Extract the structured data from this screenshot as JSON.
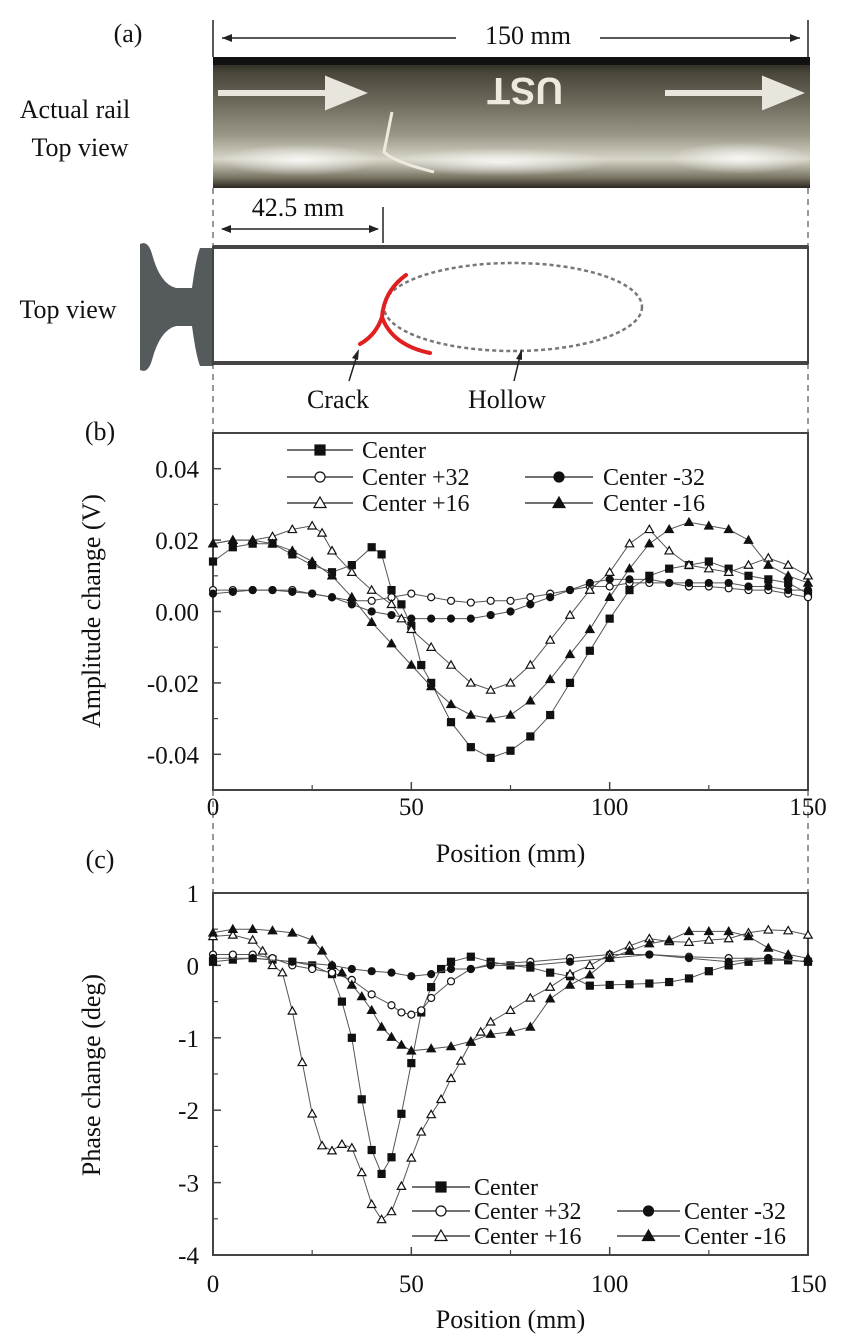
{
  "panel_a": {
    "label": "(a)",
    "photo_label_line1": "Actual rail",
    "photo_label_line2": "Top view",
    "photo_marking": "UST",
    "length_dimension": "150 mm",
    "crack_dimension": "42.5 mm",
    "schematic_label": "Top view",
    "crack_label": "Crack",
    "hollow_label": "Hollow",
    "crack_color": "#e02020"
  },
  "chart_data": [
    {
      "panel_label": "(b)",
      "type": "line",
      "xlabel": "Position (mm)",
      "ylabel": "Amplitude change (V)",
      "xlim": [
        0,
        150
      ],
      "ylim": [
        -0.05,
        0.05
      ],
      "xticks": [
        0,
        50,
        100,
        150
      ],
      "xtick_labels": [
        "0",
        "50",
        "100",
        "150"
      ],
      "yticks": [
        0.04,
        0.02,
        0.0,
        -0.02,
        -0.04
      ],
      "ytick_labels": [
        "0.04",
        "0.02",
        "0.00",
        "-0.02",
        "-0.04"
      ],
      "grid": false,
      "legend_position": "top-left",
      "series": [
        {
          "name": "Center",
          "marker": "filled-square",
          "x": [
            0,
            5,
            10,
            15,
            20,
            25,
            30,
            35,
            40,
            42.5,
            45,
            47.5,
            50,
            52.5,
            55,
            60,
            65,
            70,
            75,
            80,
            85,
            90,
            95,
            100,
            105,
            110,
            115,
            120,
            125,
            130,
            135,
            140,
            145,
            150
          ],
          "y": [
            0.014,
            0.018,
            0.019,
            0.019,
            0.016,
            0.013,
            0.011,
            0.013,
            0.018,
            0.016,
            0.006,
            0.002,
            -0.004,
            -0.015,
            -0.02,
            -0.031,
            -0.038,
            -0.041,
            -0.039,
            -0.035,
            -0.029,
            -0.02,
            -0.011,
            -0.002,
            0.006,
            0.01,
            0.012,
            0.013,
            0.014,
            0.012,
            0.01,
            0.009,
            0.008,
            0.005
          ]
        },
        {
          "name": "Center +32",
          "marker": "open-circle",
          "x": [
            0,
            5,
            10,
            15,
            20,
            25,
            30,
            35,
            40,
            45,
            50,
            55,
            60,
            65,
            70,
            75,
            80,
            85,
            90,
            95,
            100,
            105,
            110,
            115,
            120,
            125,
            130,
            135,
            140,
            145,
            150
          ],
          "y": [
            0.006,
            0.006,
            0.006,
            0.006,
            0.006,
            0.005,
            0.004,
            0.003,
            0.003,
            0.004,
            0.005,
            0.004,
            0.003,
            0.0025,
            0.003,
            0.003,
            0.004,
            0.005,
            0.006,
            0.007,
            0.007,
            0.008,
            0.008,
            0.008,
            0.007,
            0.007,
            0.0065,
            0.006,
            0.006,
            0.005,
            0.004
          ]
        },
        {
          "name": "Center -32",
          "marker": "filled-circle",
          "x": [
            0,
            5,
            10,
            15,
            20,
            25,
            30,
            35,
            40,
            45,
            50,
            55,
            60,
            65,
            70,
            75,
            80,
            85,
            90,
            95,
            100,
            105,
            110,
            115,
            120,
            125,
            130,
            135,
            140,
            145,
            150
          ],
          "y": [
            0.005,
            0.0055,
            0.006,
            0.006,
            0.0055,
            0.005,
            0.004,
            0.002,
            0.0,
            -0.001,
            -0.002,
            -0.002,
            -0.002,
            -0.002,
            -0.001,
            0.0,
            0.002,
            0.004,
            0.006,
            0.008,
            0.009,
            0.009,
            0.009,
            0.008,
            0.008,
            0.008,
            0.008,
            0.007,
            0.007,
            0.006,
            0.006
          ]
        },
        {
          "name": "Center +16",
          "marker": "open-triangle",
          "x": [
            0,
            5,
            10,
            15,
            20,
            25,
            27.5,
            30,
            35,
            40,
            45,
            47.5,
            50,
            55,
            60,
            65,
            70,
            75,
            80,
            85,
            90,
            95,
            100,
            105,
            110,
            115,
            120,
            125,
            130,
            135,
            140,
            145,
            150
          ],
          "y": [
            0.019,
            0.02,
            0.02,
            0.021,
            0.023,
            0.024,
            0.022,
            0.017,
            0.011,
            0.006,
            0.002,
            -0.002,
            -0.005,
            -0.01,
            -0.015,
            -0.02,
            -0.022,
            -0.02,
            -0.015,
            -0.008,
            -0.001,
            0.006,
            0.011,
            0.019,
            0.023,
            0.017,
            0.013,
            0.012,
            0.011,
            0.013,
            0.015,
            0.013,
            0.01
          ]
        },
        {
          "name": "Center -16",
          "marker": "filled-triangle",
          "x": [
            0,
            5,
            10,
            15,
            20,
            25,
            30,
            35,
            40,
            45,
            50,
            55,
            60,
            65,
            70,
            75,
            80,
            85,
            90,
            95,
            100,
            105,
            110,
            115,
            120,
            125,
            130,
            135,
            140,
            145,
            150
          ],
          "y": [
            0.019,
            0.02,
            0.02,
            0.019,
            0.017,
            0.014,
            0.01,
            0.004,
            -0.003,
            -0.009,
            -0.015,
            -0.021,
            -0.026,
            -0.029,
            -0.03,
            -0.029,
            -0.025,
            -0.019,
            -0.012,
            -0.005,
            0.004,
            0.012,
            0.019,
            0.023,
            0.025,
            0.024,
            0.023,
            0.02,
            0.013,
            0.01,
            0.008
          ]
        }
      ]
    },
    {
      "panel_label": "(c)",
      "type": "line",
      "xlabel": "Position (mm)",
      "ylabel": "Phase change (deg)",
      "xlim": [
        0,
        150
      ],
      "ylim": [
        -4,
        1
      ],
      "xticks": [
        0,
        50,
        100,
        150
      ],
      "xtick_labels": [
        "0",
        "50",
        "100",
        "150"
      ],
      "yticks": [
        1,
        0,
        -1,
        -2,
        -3,
        -4
      ],
      "ytick_labels": [
        "1",
        "0",
        "-1",
        "-2",
        "-3",
        "-4"
      ],
      "grid": false,
      "legend_position": "bottom-right",
      "series": [
        {
          "name": "Center",
          "marker": "filled-square",
          "x": [
            0,
            5,
            10,
            15,
            20,
            25,
            30,
            32.5,
            35,
            37.5,
            40,
            42.5,
            45,
            47.5,
            50,
            52.5,
            55,
            57.5,
            60,
            65,
            70,
            75,
            80,
            85,
            90,
            95,
            100,
            105,
            110,
            115,
            120,
            125,
            130,
            135,
            140,
            145,
            150
          ],
          "y": [
            0.05,
            0.08,
            0.1,
            0.08,
            0.05,
            0.0,
            -0.12,
            -0.5,
            -1.0,
            -1.85,
            -2.55,
            -2.88,
            -2.65,
            -2.05,
            -1.35,
            -0.65,
            -0.3,
            -0.05,
            0.05,
            0.12,
            0.05,
            0.0,
            -0.03,
            -0.1,
            -0.15,
            -0.28,
            -0.27,
            -0.26,
            -0.25,
            -0.23,
            -0.18,
            -0.08,
            0.0,
            0.05,
            0.07,
            0.07,
            0.05
          ]
        },
        {
          "name": "Center +32",
          "marker": "open-circle",
          "x": [
            0,
            5,
            10,
            15,
            20,
            25,
            30,
            35,
            40,
            45,
            47.5,
            50,
            52.5,
            55,
            60,
            65,
            70,
            80,
            90,
            100,
            110,
            120,
            130,
            140,
            150
          ],
          "y": [
            0.15,
            0.15,
            0.15,
            0.1,
            0.0,
            -0.05,
            -0.1,
            -0.2,
            -0.4,
            -0.55,
            -0.65,
            -0.68,
            -0.62,
            -0.45,
            -0.22,
            -0.05,
            0.02,
            0.05,
            0.1,
            0.15,
            0.15,
            0.12,
            0.1,
            0.1,
            0.05
          ]
        },
        {
          "name": "Center -32",
          "marker": "filled-circle",
          "x": [
            0,
            10,
            20,
            30,
            35,
            40,
            45,
            50,
            55,
            60,
            65,
            70,
            80,
            90,
            100,
            110,
            120,
            130,
            140,
            150
          ],
          "y": [
            0.1,
            0.1,
            0.05,
            0.0,
            -0.05,
            -0.08,
            -0.1,
            -0.15,
            -0.12,
            -0.05,
            -0.05,
            0.0,
            0.0,
            0.05,
            0.1,
            0.15,
            0.1,
            0.05,
            0.1,
            0.05
          ]
        },
        {
          "name": "Center +16",
          "marker": "open-triangle",
          "x": [
            0,
            5,
            10,
            12.5,
            15,
            17.5,
            20,
            22.5,
            25,
            27.5,
            30,
            32.5,
            35,
            37.5,
            40,
            42.5,
            45,
            47.5,
            50,
            52.5,
            55,
            57.5,
            60,
            62.5,
            65,
            67.5,
            70,
            75,
            80,
            85,
            90,
            95,
            100,
            105,
            110,
            115,
            120,
            125,
            130,
            135,
            140,
            145,
            150
          ],
          "y": [
            0.4,
            0.42,
            0.35,
            0.2,
            0.0,
            -0.1,
            -0.63,
            -1.34,
            -2.05,
            -2.49,
            -2.56,
            -2.47,
            -2.52,
            -2.86,
            -3.3,
            -3.51,
            -3.4,
            -3.05,
            -2.66,
            -2.3,
            -2.06,
            -1.85,
            -1.56,
            -1.32,
            -1.06,
            -0.92,
            -0.78,
            -0.62,
            -0.45,
            -0.3,
            -0.12,
            0.0,
            0.15,
            0.27,
            0.37,
            0.33,
            0.32,
            0.35,
            0.37,
            0.45,
            0.49,
            0.48,
            0.42
          ]
        },
        {
          "name": "Center -16",
          "marker": "filled-triangle",
          "x": [
            0,
            5,
            10,
            15,
            20,
            25,
            27.5,
            30,
            32.5,
            35,
            37.5,
            40,
            42.5,
            45,
            47.5,
            50,
            55,
            60,
            65,
            70,
            75,
            80,
            85,
            90,
            95,
            100,
            105,
            110,
            115,
            120,
            125,
            130,
            135,
            140,
            145,
            150
          ],
          "y": [
            0.45,
            0.5,
            0.5,
            0.48,
            0.45,
            0.35,
            0.2,
            0.0,
            -0.1,
            -0.27,
            -0.43,
            -0.62,
            -0.85,
            -0.99,
            -1.1,
            -1.18,
            -1.15,
            -1.12,
            -1.05,
            -0.95,
            -0.92,
            -0.85,
            -0.46,
            -0.27,
            -0.13,
            0.1,
            0.2,
            0.3,
            0.35,
            0.47,
            0.47,
            0.47,
            0.4,
            0.24,
            0.15,
            0.1
          ]
        }
      ]
    }
  ]
}
